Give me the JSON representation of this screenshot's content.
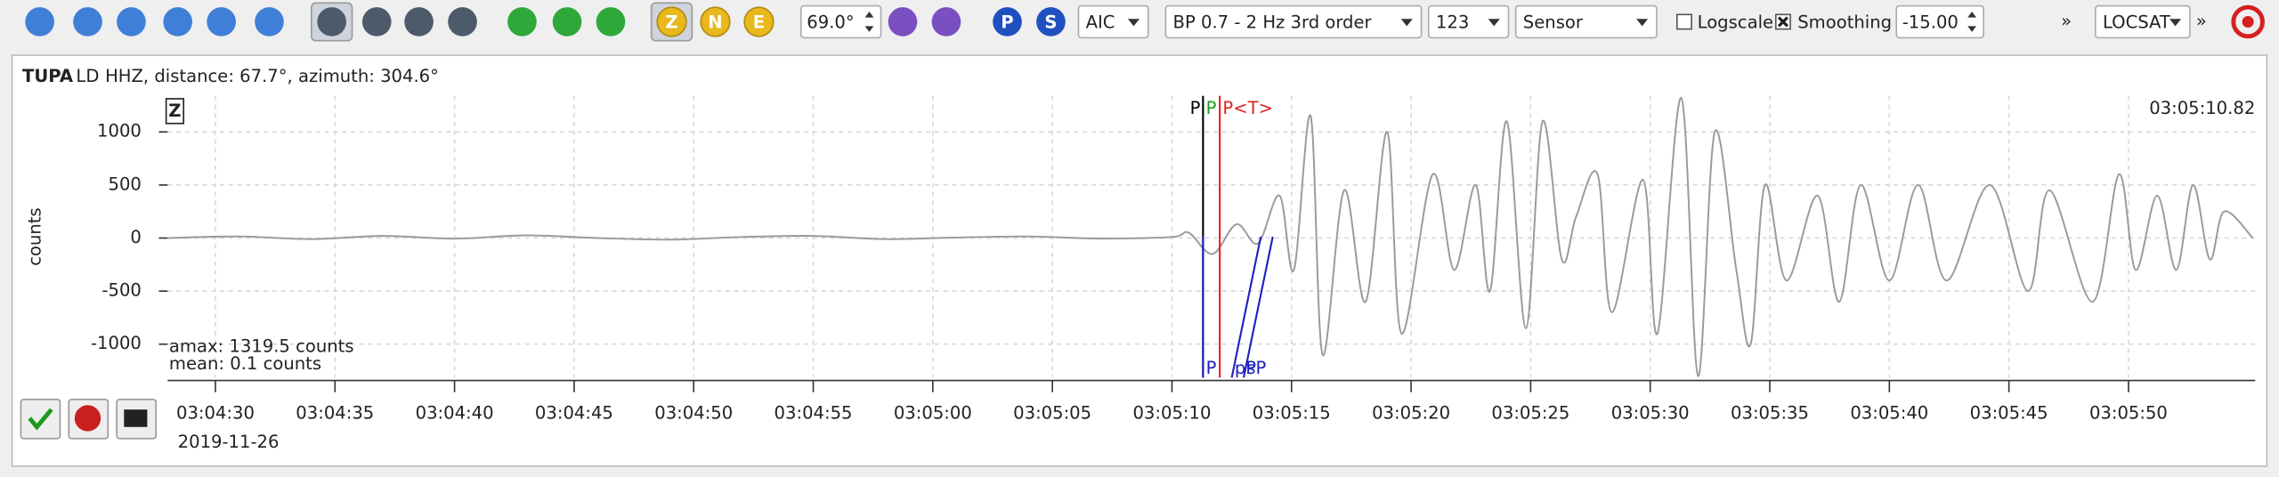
{
  "toolbar": {
    "accuracy": "69.0°",
    "picker": "AIC",
    "filter": "BP 0.7 - 2 Hz  3rd order",
    "component": "123",
    "unit": "Sensor",
    "logscale": "Logscale",
    "smoothing": "Smoothing",
    "offset": "-15.00",
    "locator": "LOCSAT",
    "components": [
      "Z",
      "N",
      "E"
    ],
    "phases": [
      "P",
      "S"
    ],
    "overflow": [
      "»",
      "»"
    ]
  },
  "trace": {
    "station": "TUPA",
    "network": "LD",
    "info": "HHZ, distance: 67.7°, azimuth: 304.6°",
    "component": "Z",
    "time": "03:05:10.82",
    "amax": "amax: 1319.5 counts",
    "mean": "mean: 0.1 counts",
    "date": "2019-11-26"
  },
  "chart_data": {
    "type": "line",
    "ylabel": "counts",
    "color": "#9a9a9a",
    "grid": true,
    "x": [
      11068,
      11071,
      11074,
      11077,
      11080,
      11083,
      11086,
      11089,
      11092,
      11095,
      11098,
      11101,
      11104,
      11107,
      11110,
      11110.7,
      11111.7,
      11112.7,
      11113.6,
      11114.5,
      11115.1,
      11115.8,
      11116.3,
      11117.2,
      11118.1,
      11119.0,
      11119.6,
      11120.9,
      11121.8,
      11122.7,
      11123.3,
      11124.0,
      11124.8,
      11125.5,
      11126.3,
      11126.9,
      11127.8,
      11128.4,
      11129.7,
      11130.3,
      11131.3,
      11132.0,
      11132.7,
      11133.6,
      11134.2,
      11134.8,
      11135.7,
      11137.0,
      11137.9,
      11138.8,
      11140.0,
      11141.2,
      11142.4,
      11144.2,
      11145.8,
      11146.7,
      11148.5,
      11149.6,
      11150.3,
      11151.2,
      11152.0,
      11152.7,
      11153.4,
      11154.0,
      11155.2
    ],
    "values": [
      0,
      15,
      -10,
      20,
      -5,
      25,
      0,
      -15,
      10,
      20,
      -10,
      5,
      15,
      -5,
      10,
      50,
      -150,
      130,
      -50,
      400,
      -300,
      1150,
      -1100,
      450,
      -600,
      1000,
      -900,
      600,
      -300,
      500,
      -500,
      1100,
      -850,
      1100,
      -200,
      200,
      600,
      -700,
      550,
      -900,
      1320,
      -1300,
      1000,
      -300,
      -1000,
      500,
      -400,
      400,
      -600,
      500,
      -400,
      500,
      -400,
      500,
      -500,
      450,
      -600,
      600,
      -300,
      400,
      -300,
      500,
      -200,
      250,
      0
    ],
    "xlim": [
      11068,
      11155.3
    ],
    "ylim": [
      -1315,
      1340
    ],
    "yticks": [
      -1000,
      -500,
      0,
      500,
      1000
    ],
    "xticks": [
      {
        "value": 11070,
        "label": "03:04:30"
      },
      {
        "value": 11075,
        "label": "03:04:35"
      },
      {
        "value": 11080,
        "label": "03:04:40"
      },
      {
        "value": 11085,
        "label": "03:04:45"
      },
      {
        "value": 11090,
        "label": "03:04:50"
      },
      {
        "value": 11095,
        "label": "03:04:55"
      },
      {
        "value": 11100,
        "label": "03:05:00"
      },
      {
        "value": 11105,
        "label": "03:05:05"
      },
      {
        "value": 11110,
        "label": "03:05:10"
      },
      {
        "value": 11115,
        "label": "03:05:15"
      },
      {
        "value": 11120,
        "label": "03:05:20"
      },
      {
        "value": 11125,
        "label": "03:05:25"
      },
      {
        "value": 11130,
        "label": "03:05:30"
      },
      {
        "value": 11135,
        "label": "03:05:35"
      },
      {
        "value": 11140,
        "label": "03:05:40"
      },
      {
        "value": 11145,
        "label": "03:05:45"
      },
      {
        "value": 11150,
        "label": "03:05:50"
      }
    ],
    "picks": [
      {
        "label": "P",
        "color": "#000000",
        "time": 11111.3,
        "pos": "top"
      },
      {
        "label": "P",
        "color": "#1a9a1a",
        "time": 11111.3,
        "pos": "top2"
      },
      {
        "label": "P<T>",
        "color": "#e02020",
        "time": 11112.0,
        "pos": "top"
      },
      {
        "label": "P",
        "color": "#2020c0",
        "time": 11111.3,
        "pos": "bottom"
      },
      {
        "label": "pP",
        "color": "#2020c0",
        "time": 11112.5,
        "pos": "bottom"
      },
      {
        "label": "sP",
        "color": "#2020c0",
        "time": 11113.0,
        "pos": "bottom"
      }
    ]
  }
}
